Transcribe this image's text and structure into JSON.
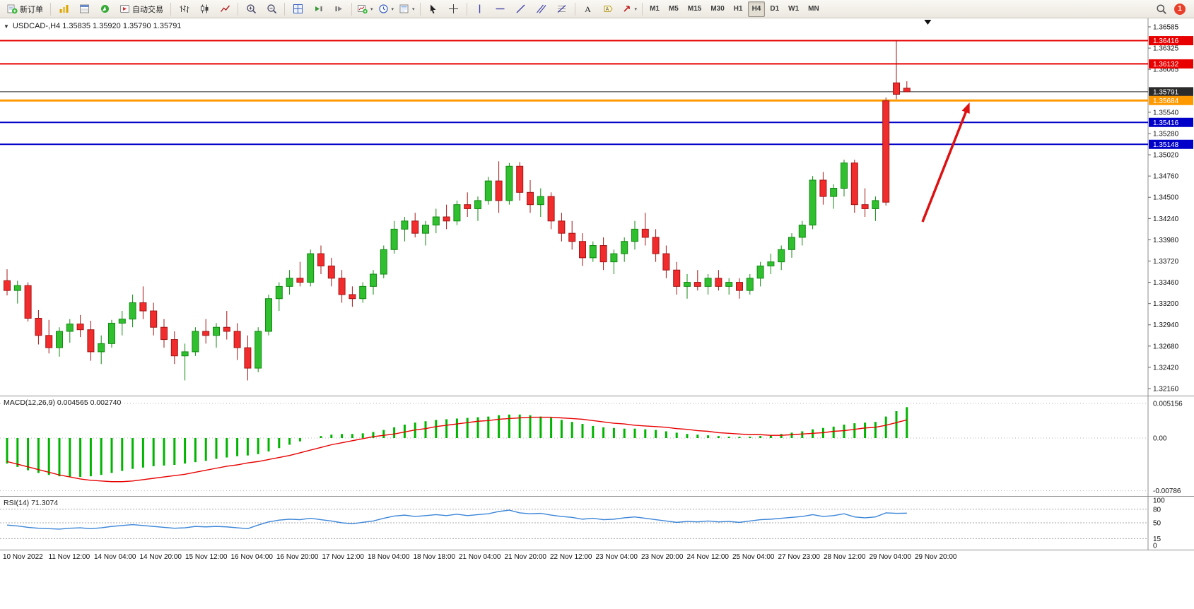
{
  "toolbar": {
    "new_order_label": "新订单",
    "autotrading_label": "自动交易",
    "timeframes": [
      "M1",
      "M5",
      "M15",
      "M30",
      "H1",
      "H4",
      "D1",
      "W1",
      "MN"
    ],
    "active_timeframe": "H4",
    "notification_count": "1"
  },
  "chart": {
    "title": "USDCAD-,H4 1.35835 1.35920 1.35790 1.35791",
    "macd_label": "MACD(12,26,9) 0.004565 0.002740",
    "rsi_label": "RSI(14) 71.3074"
  },
  "colors": {
    "up": "#2fbf2f",
    "up_dark": "#128a12",
    "down": "#f22c2c",
    "down_dark": "#a31515",
    "macd_histogram": "#00b400",
    "macd_signal": "#e80000",
    "rsi_line": "#3c86d8",
    "arrow": "#dd1111"
  },
  "chart_data": {
    "type": "candlestick",
    "symbol": "USDCAD-",
    "timeframe": "H4",
    "current_bar": {
      "open": 1.35835,
      "high": 1.3592,
      "low": 1.3579,
      "close": 1.35791
    },
    "price_axis": {
      "min": 1.3216,
      "max": 1.36585,
      "tick_labels": [
        "1.36585",
        "1.36325",
        "1.36065",
        "1.35540",
        "1.35280",
        "1.35020",
        "1.34760",
        "1.34500",
        "1.34240",
        "1.33980",
        "1.33720",
        "1.33460",
        "1.33200",
        "1.32940",
        "1.32680",
        "1.32420",
        "1.32160"
      ]
    },
    "hlines": [
      {
        "price": 1.36416,
        "label": "1.36416",
        "color": "#e80000",
        "width": 2,
        "role": "resistance-line"
      },
      {
        "price": 1.36132,
        "label": "1.36132",
        "color": "#e80000",
        "width": 2,
        "role": "resistance-line"
      },
      {
        "price": 1.35791,
        "label": "1.35791",
        "color": "#2b2b2b",
        "width": 1,
        "role": "current-price-line"
      },
      {
        "price": 1.35684,
        "label": "1.35684",
        "color": "#ff9900",
        "width": 3,
        "role": "pivot-line"
      },
      {
        "price": 1.35416,
        "label": "1.35416",
        "color": "#0000c8",
        "width": 2,
        "role": "support-line"
      },
      {
        "price": 1.35148,
        "label": "1.35148",
        "color": "#0000c8",
        "width": 2,
        "role": "support-line"
      }
    ],
    "candles": [
      [
        1.3348,
        1.3362,
        1.333,
        1.3336
      ],
      [
        1.3336,
        1.3348,
        1.332,
        1.3342
      ],
      [
        1.3342,
        1.3346,
        1.3298,
        1.3302
      ],
      [
        1.3302,
        1.3312,
        1.327,
        1.3281
      ],
      [
        1.3281,
        1.33,
        1.3259,
        1.3266
      ],
      [
        1.3266,
        1.3291,
        1.3255,
        1.3286
      ],
      [
        1.3286,
        1.3301,
        1.3272,
        1.3295
      ],
      [
        1.3295,
        1.3306,
        1.3279,
        1.3288
      ],
      [
        1.3288,
        1.3299,
        1.325,
        1.3261
      ],
      [
        1.3261,
        1.3281,
        1.3246,
        1.3271
      ],
      [
        1.3271,
        1.33,
        1.3266,
        1.3296
      ],
      [
        1.3296,
        1.3311,
        1.3281,
        1.3301
      ],
      [
        1.3301,
        1.3331,
        1.3291,
        1.3321
      ],
      [
        1.3321,
        1.3341,
        1.3301,
        1.3311
      ],
      [
        1.3311,
        1.3321,
        1.3281,
        1.3291
      ],
      [
        1.3291,
        1.3301,
        1.3266,
        1.3276
      ],
      [
        1.3276,
        1.3286,
        1.3246,
        1.3256
      ],
      [
        1.3256,
        1.3271,
        1.3226,
        1.3261
      ],
      [
        1.3261,
        1.3291,
        1.3256,
        1.3286
      ],
      [
        1.3286,
        1.3301,
        1.3271,
        1.3281
      ],
      [
        1.3281,
        1.3296,
        1.3266,
        1.3291
      ],
      [
        1.3291,
        1.3311,
        1.3276,
        1.3286
      ],
      [
        1.3286,
        1.3296,
        1.3251,
        1.3266
      ],
      [
        1.3266,
        1.3281,
        1.3226,
        1.3241
      ],
      [
        1.3241,
        1.3291,
        1.3236,
        1.3286
      ],
      [
        1.3286,
        1.3331,
        1.3281,
        1.3326
      ],
      [
        1.3326,
        1.3346,
        1.3311,
        1.3341
      ],
      [
        1.3341,
        1.3361,
        1.3331,
        1.3351
      ],
      [
        1.3351,
        1.3371,
        1.3341,
        1.3346
      ],
      [
        1.3346,
        1.3386,
        1.3341,
        1.3381
      ],
      [
        1.3381,
        1.3391,
        1.3356,
        1.3366
      ],
      [
        1.3366,
        1.3376,
        1.3341,
        1.3351
      ],
      [
        1.3351,
        1.3361,
        1.3321,
        1.3331
      ],
      [
        1.3331,
        1.3341,
        1.3316,
        1.3326
      ],
      [
        1.3326,
        1.3346,
        1.3321,
        1.3341
      ],
      [
        1.3341,
        1.3361,
        1.3331,
        1.3356
      ],
      [
        1.3356,
        1.3391,
        1.3351,
        1.3386
      ],
      [
        1.3386,
        1.3421,
        1.3381,
        1.3411
      ],
      [
        1.3411,
        1.3426,
        1.3396,
        1.3421
      ],
      [
        1.3421,
        1.3431,
        1.3401,
        1.3406
      ],
      [
        1.3406,
        1.3421,
        1.3391,
        1.3416
      ],
      [
        1.3416,
        1.3436,
        1.3406,
        1.3426
      ],
      [
        1.3426,
        1.3441,
        1.3411,
        1.3421
      ],
      [
        1.3421,
        1.3446,
        1.3416,
        1.3441
      ],
      [
        1.3441,
        1.3456,
        1.3426,
        1.3436
      ],
      [
        1.3436,
        1.3451,
        1.3421,
        1.3446
      ],
      [
        1.3446,
        1.3475,
        1.3441,
        1.347
      ],
      [
        1.347,
        1.3494,
        1.3431,
        1.3446
      ],
      [
        1.3446,
        1.3492,
        1.3441,
        1.3488
      ],
      [
        1.3488,
        1.3493,
        1.3446,
        1.3456
      ],
      [
        1.3456,
        1.3471,
        1.3431,
        1.3441
      ],
      [
        1.3441,
        1.3461,
        1.3426,
        1.3451
      ],
      [
        1.3451,
        1.3456,
        1.3411,
        1.3421
      ],
      [
        1.3421,
        1.3431,
        1.3396,
        1.3406
      ],
      [
        1.3406,
        1.3421,
        1.3386,
        1.3396
      ],
      [
        1.3396,
        1.3406,
        1.3366,
        1.3376
      ],
      [
        1.3376,
        1.3396,
        1.3371,
        1.3391
      ],
      [
        1.3391,
        1.3401,
        1.3361,
        1.3371
      ],
      [
        1.3371,
        1.3386,
        1.3356,
        1.3381
      ],
      [
        1.3381,
        1.3401,
        1.3371,
        1.3396
      ],
      [
        1.3396,
        1.3421,
        1.3386,
        1.3411
      ],
      [
        1.3411,
        1.3431,
        1.3391,
        1.3401
      ],
      [
        1.3401,
        1.3411,
        1.3371,
        1.3381
      ],
      [
        1.3381,
        1.3391,
        1.3351,
        1.3361
      ],
      [
        1.3361,
        1.3371,
        1.3331,
        1.3341
      ],
      [
        1.3341,
        1.3356,
        1.3326,
        1.3346
      ],
      [
        1.3346,
        1.3361,
        1.3336,
        1.3341
      ],
      [
        1.3341,
        1.3356,
        1.3331,
        1.3351
      ],
      [
        1.3351,
        1.3361,
        1.3336,
        1.3341
      ],
      [
        1.3341,
        1.3351,
        1.3331,
        1.3346
      ],
      [
        1.3346,
        1.3351,
        1.3326,
        1.3336
      ],
      [
        1.3336,
        1.3356,
        1.3331,
        1.3351
      ],
      [
        1.3351,
        1.3371,
        1.3341,
        1.3366
      ],
      [
        1.3366,
        1.3381,
        1.3356,
        1.3371
      ],
      [
        1.3371,
        1.3391,
        1.3361,
        1.3386
      ],
      [
        1.3386,
        1.3406,
        1.3376,
        1.3401
      ],
      [
        1.3401,
        1.3421,
        1.3391,
        1.3416
      ],
      [
        1.3416,
        1.3476,
        1.3411,
        1.3471
      ],
      [
        1.3471,
        1.3481,
        1.3441,
        1.3451
      ],
      [
        1.3451,
        1.3466,
        1.3436,
        1.3461
      ],
      [
        1.3461,
        1.3496,
        1.3451,
        1.3492
      ],
      [
        1.3492,
        1.3496,
        1.3431,
        1.3441
      ],
      [
        1.3441,
        1.3461,
        1.3426,
        1.3436
      ],
      [
        1.3436,
        1.3451,
        1.3421,
        1.3446
      ],
      [
        1.3568,
        1.3572,
        1.344,
        1.3444
      ],
      [
        1.359,
        1.3642,
        1.357,
        1.3576
      ],
      [
        1.35835,
        1.3592,
        1.3579,
        1.35791
      ]
    ],
    "time_labels": [
      "10 Nov 2022",
      "11 Nov 12:00",
      "14 Nov 04:00",
      "14 Nov 20:00",
      "15 Nov 12:00",
      "16 Nov 04:00",
      "16 Nov 20:00",
      "17 Nov 12:00",
      "18 Nov 04:00",
      "18 Nov 18:00",
      "21 Nov 04:00",
      "21 Nov 20:00",
      "22 Nov 12:00",
      "23 Nov 04:00",
      "23 Nov 20:00",
      "24 Nov 12:00",
      "25 Nov 04:00",
      "27 Nov 23:00",
      "28 Nov 12:00",
      "29 Nov 04:00",
      "29 Nov 20:00"
    ],
    "arrow": {
      "color": "#dd1111",
      "from": {
        "index": 87.5,
        "price": 1.342
      },
      "to": {
        "index": 92,
        "price": 1.3566
      }
    },
    "shift_marker_index": 88,
    "macd": {
      "params": "12,26,9",
      "value": 0.004565,
      "signal_value": 0.00274,
      "scale_labels": [
        "0.005156",
        "0.00",
        "-0.00786"
      ],
      "scale_values": [
        0.005156,
        0,
        -0.00786
      ],
      "histogram": [
        -0.0038,
        -0.0043,
        -0.0048,
        -0.0052,
        -0.0055,
        -0.0057,
        -0.0058,
        -0.0058,
        -0.0057,
        -0.0055,
        -0.0052,
        -0.0049,
        -0.0046,
        -0.0044,
        -0.0042,
        -0.0041,
        -0.004,
        -0.0038,
        -0.0036,
        -0.0034,
        -0.0031,
        -0.0029,
        -0.0027,
        -0.0026,
        -0.0024,
        -0.002,
        -0.0015,
        -0.001,
        -0.0005,
        0.0,
        0.0003,
        0.0005,
        0.0006,
        0.0006,
        0.0007,
        0.0009,
        0.0012,
        0.0016,
        0.002,
        0.0023,
        0.0025,
        0.0027,
        0.0028,
        0.0029,
        0.003,
        0.0031,
        0.0032,
        0.0034,
        0.0035,
        0.0035,
        0.0034,
        0.0032,
        0.003,
        0.0027,
        0.0024,
        0.0021,
        0.0018,
        0.0016,
        0.0015,
        0.0014,
        0.0014,
        0.0013,
        0.0012,
        0.001,
        0.0008,
        0.0006,
        0.0005,
        0.0004,
        0.0003,
        0.0002,
        0.0002,
        0.0002,
        0.0003,
        0.0004,
        0.0006,
        0.0008,
        0.001,
        0.0013,
        0.0015,
        0.0017,
        0.002,
        0.0022,
        0.0023,
        0.0024,
        0.0032,
        0.004,
        0.0046
      ],
      "signal": [
        -0.0035,
        -0.0039,
        -0.0043,
        -0.0047,
        -0.0051,
        -0.0055,
        -0.0058,
        -0.0061,
        -0.0063,
        -0.0064,
        -0.0065,
        -0.0065,
        -0.0064,
        -0.0062,
        -0.006,
        -0.0058,
        -0.0056,
        -0.0054,
        -0.0051,
        -0.0048,
        -0.0045,
        -0.0042,
        -0.004,
        -0.0037,
        -0.0035,
        -0.0032,
        -0.0029,
        -0.0026,
        -0.0022,
        -0.0018,
        -0.0014,
        -0.001,
        -0.0007,
        -0.0004,
        -0.0001,
        0.0002,
        0.0004,
        0.0006,
        0.0009,
        0.0012,
        0.0014,
        0.0017,
        0.0019,
        0.0021,
        0.0023,
        0.0025,
        0.0026,
        0.0028,
        0.0029,
        0.003,
        0.0031,
        0.0031,
        0.0031,
        0.003,
        0.0029,
        0.0028,
        0.0026,
        0.0024,
        0.0022,
        0.0021,
        0.0019,
        0.0018,
        0.0017,
        0.0016,
        0.0014,
        0.0013,
        0.0011,
        0.001,
        0.0008,
        0.0007,
        0.0006,
        0.0005,
        0.0005,
        0.0004,
        0.0004,
        0.0005,
        0.0006,
        0.0007,
        0.0008,
        0.001,
        0.0011,
        0.0013,
        0.0015,
        0.0016,
        0.0019,
        0.0023,
        0.0027
      ]
    },
    "rsi": {
      "period": 14,
      "value": 71.3074,
      "levels": [
        80,
        50,
        15
      ],
      "scale_labels": [
        "100",
        "80",
        "50",
        "15",
        "0"
      ],
      "scale_values": [
        100,
        80,
        50,
        15,
        0
      ],
      "values": [
        45,
        43,
        40,
        38,
        37,
        36,
        38,
        39,
        37,
        39,
        42,
        44,
        46,
        44,
        42,
        40,
        38,
        39,
        42,
        41,
        42,
        41,
        39,
        37,
        45,
        52,
        56,
        58,
        57,
        60,
        57,
        54,
        50,
        48,
        51,
        54,
        60,
        65,
        67,
        64,
        66,
        68,
        66,
        69,
        66,
        68,
        70,
        75,
        78,
        72,
        70,
        71,
        67,
        64,
        62,
        58,
        60,
        57,
        58,
        61,
        63,
        60,
        57,
        54,
        51,
        53,
        52,
        54,
        52,
        53,
        51,
        54,
        57,
        58,
        60,
        62,
        64,
        68,
        64,
        66,
        70,
        63,
        61,
        63,
        72,
        71,
        71.3
      ]
    }
  }
}
